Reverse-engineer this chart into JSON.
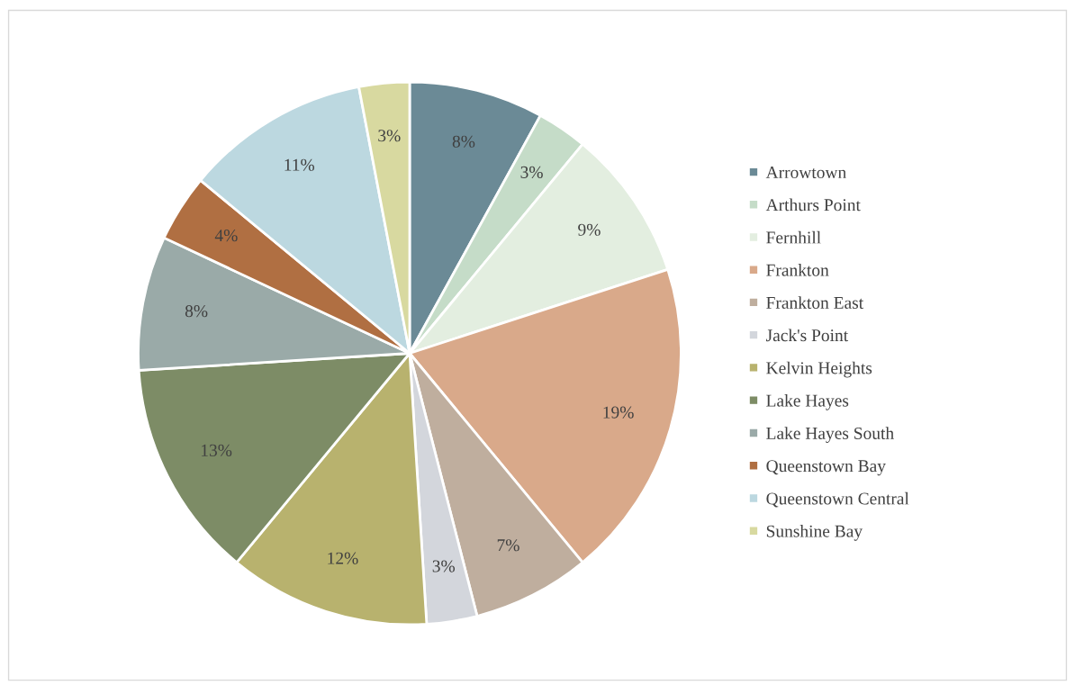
{
  "chart_data": {
    "type": "pie",
    "categories": [
      "Arrowtown",
      "Arthurs Point",
      "Fernhill",
      "Frankton",
      "Frankton East",
      "Jack's Point",
      "Kelvin Heights",
      "Lake Hayes",
      "Lake Hayes South",
      "Queenstown Bay",
      "Queenstown Central",
      "Sunshine Bay"
    ],
    "values": [
      8,
      3,
      9,
      19,
      7,
      3,
      12,
      13,
      8,
      4,
      11,
      3
    ],
    "colors": [
      "#6b8a96",
      "#c5dcc8",
      "#e3eee0",
      "#d9a98a",
      "#bfae9e",
      "#d3d6dc",
      "#b8b26e",
      "#7d8c66",
      "#9aaaa8",
      "#b06f42",
      "#bcd8e0",
      "#d8d9a0"
    ],
    "value_labels": [
      "8%",
      "3%",
      "9%",
      "19%",
      "7%",
      "3%",
      "12%",
      "13%",
      "8%",
      "4%",
      "11%",
      "3%"
    ],
    "legend": "right"
  }
}
